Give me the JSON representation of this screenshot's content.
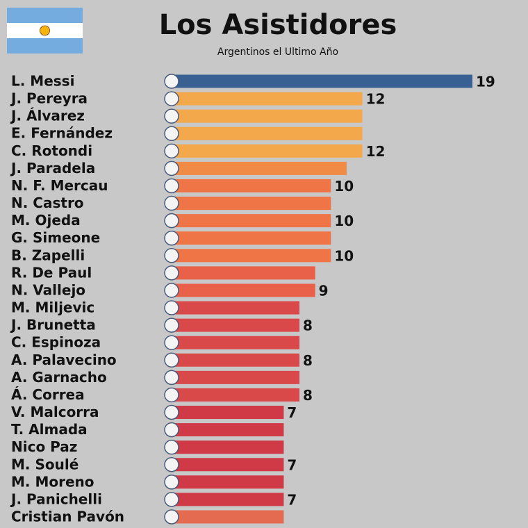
{
  "chart_data": {
    "type": "barh",
    "title": "Los Asistidores",
    "subtitle": "Argentinos el Ultimo Año",
    "categories": [
      "L. Messi",
      "J. Pereyra",
      "J. Álvarez",
      "E. Fernández",
      "C. Rotondi",
      "J. Paradela",
      "N. F. Mercau",
      "N. Castro",
      "M. Ojeda",
      "G. Simeone",
      "B. Zapelli",
      "R. De Paul",
      "N. Vallejo",
      "M. Miljevic",
      "J. Brunetta",
      "C. Espinoza",
      "A. Palavecino",
      "A. Garnacho",
      "Á. Correa",
      "V. Malcorra",
      "T. Almada",
      "Nico Paz",
      "M. Soulé",
      "M. Moreno",
      "J. Panichelli",
      "Cristian Pavón"
    ],
    "values": [
      19,
      12,
      12,
      12,
      12,
      11,
      10,
      10,
      10,
      10,
      10,
      9,
      9,
      8,
      8,
      8,
      8,
      8,
      8,
      7,
      7,
      7,
      7,
      7,
      7,
      7
    ],
    "value_labels": [
      "19",
      "12",
      null,
      null,
      "12",
      null,
      "10",
      null,
      "10",
      null,
      "10",
      null,
      "9",
      null,
      "8",
      null,
      "8",
      null,
      "8",
      "7",
      null,
      null,
      "7",
      null,
      "7",
      null
    ],
    "colors": [
      "#386093",
      "#f3a84c",
      "#f3a84c",
      "#f3a84c",
      "#f3a84c",
      "#f08a45",
      "#ef7547",
      "#ef7547",
      "#ef7547",
      "#ef7547",
      "#ef7547",
      "#ea6149",
      "#ea6149",
      "#d9494a",
      "#d9494a",
      "#d9494a",
      "#d9494a",
      "#d9494a",
      "#d9494a",
      "#cf3a46",
      "#cf3a46",
      "#cf3a46",
      "#cf3a46",
      "#cf3a46",
      "#cf3a46",
      "#e46b4f"
    ]
  }
}
